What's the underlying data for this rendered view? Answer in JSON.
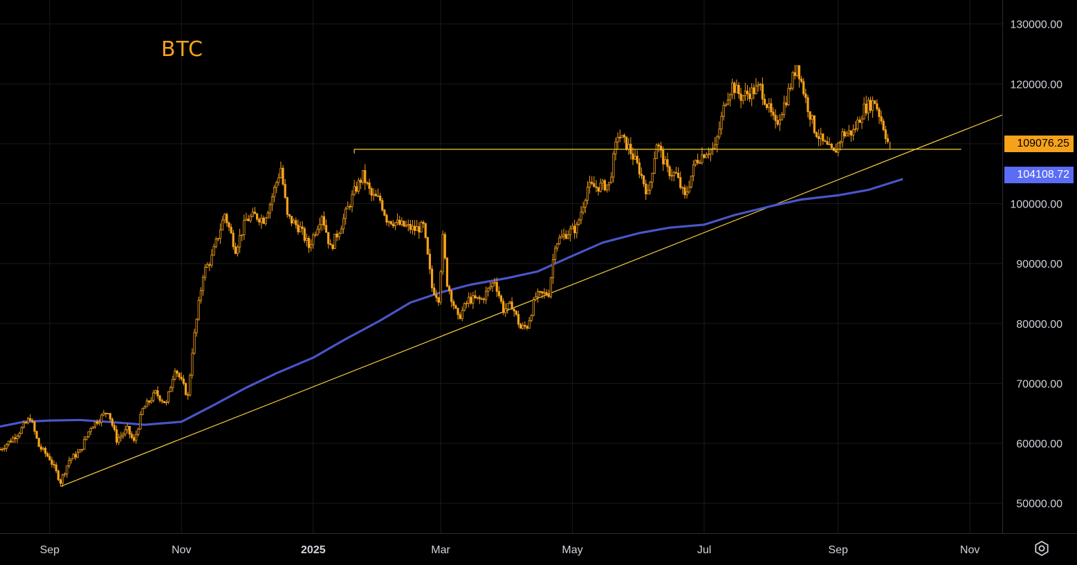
{
  "chart_data": {
    "type": "candlestick",
    "title": "BTC",
    "x_ticks": [
      "Sep",
      "Nov",
      "2025",
      "Mar",
      "May",
      "Jul",
      "Sep",
      "Nov"
    ],
    "y_ticks": [
      "130000.00",
      "120000.00",
      "110000.00",
      "100000.00",
      "90000.00",
      "80000.00",
      "70000.00",
      "60000.00",
      "50000.00"
    ],
    "ylim": [
      45000,
      134000
    ],
    "xlim": [
      "2024-08-09",
      "2025-11-16"
    ],
    "grid": true,
    "last_price": {
      "label": "109076.25",
      "value": 109076.25
    },
    "moving_average": {
      "label": "104108.72",
      "value": 104108.72,
      "points": [
        [
          "2024-08-09",
          62800
        ],
        [
          "2024-08-20",
          63600
        ],
        [
          "2024-09-01",
          63800
        ],
        [
          "2024-09-15",
          63900
        ],
        [
          "2024-10-01",
          63500
        ],
        [
          "2024-10-15",
          63100
        ],
        [
          "2024-11-01",
          63600
        ],
        [
          "2024-11-15",
          66200
        ],
        [
          "2024-12-01",
          69300
        ],
        [
          "2024-12-15",
          71700
        ],
        [
          "2025-01-01",
          74300
        ],
        [
          "2025-01-15",
          77200
        ],
        [
          "2025-02-01",
          80500
        ],
        [
          "2025-02-15",
          83500
        ],
        [
          "2025-03-01",
          85200
        ],
        [
          "2025-03-15",
          86500
        ],
        [
          "2025-04-01",
          87600
        ],
        [
          "2025-04-15",
          88700
        ],
        [
          "2025-05-01",
          91300
        ],
        [
          "2025-05-15",
          93500
        ],
        [
          "2025-06-01",
          95100
        ],
        [
          "2025-06-15",
          96000
        ],
        [
          "2025-07-01",
          96500
        ],
        [
          "2025-07-15",
          98100
        ],
        [
          "2025-08-01",
          99600
        ],
        [
          "2025-08-15",
          100700
        ],
        [
          "2025-09-01",
          101400
        ],
        [
          "2025-09-15",
          102300
        ],
        [
          "2025-10-01",
          104108.72
        ]
      ]
    },
    "trendline": [
      [
        "2024-09-06",
        52800
      ],
      [
        "2025-11-16",
        114800
      ]
    ],
    "horizontal_level": {
      "value": 109076.25,
      "from": "2025-01-20",
      "to": "2025-10-28"
    },
    "series": [
      {
        "name": "BTC",
        "close": [
          [
            "2024-08-09",
            59000
          ],
          [
            "2024-08-14",
            60500
          ],
          [
            "2024-08-18",
            62000
          ],
          [
            "2024-08-23",
            64300
          ],
          [
            "2024-08-27",
            59500
          ],
          [
            "2024-09-01",
            57500
          ],
          [
            "2024-09-06",
            53600
          ],
          [
            "2024-09-10",
            57200
          ],
          [
            "2024-09-15",
            58600
          ],
          [
            "2024-09-20",
            62800
          ],
          [
            "2024-09-24",
            64100
          ],
          [
            "2024-09-28",
            65500
          ],
          [
            "2024-10-02",
            60600
          ],
          [
            "2024-10-07",
            62300
          ],
          [
            "2024-10-10",
            60200
          ],
          [
            "2024-10-14",
            65600
          ],
          [
            "2024-10-20",
            68400
          ],
          [
            "2024-10-25",
            66600
          ],
          [
            "2024-10-29",
            72700
          ],
          [
            "2024-11-04",
            67800
          ],
          [
            "2024-11-06",
            75500
          ],
          [
            "2024-11-11",
            88300
          ],
          [
            "2024-11-15",
            91000
          ],
          [
            "2024-11-21",
            98300
          ],
          [
            "2024-11-26",
            92500
          ],
          [
            "2024-12-01",
            97300
          ],
          [
            "2024-12-05",
            98000
          ],
          [
            "2024-12-09",
            97400
          ],
          [
            "2024-12-12",
            100000
          ],
          [
            "2024-12-17",
            106000
          ],
          [
            "2024-12-20",
            97800
          ],
          [
            "2024-12-26",
            95800
          ],
          [
            "2024-12-30",
            92800
          ],
          [
            "2025-01-05",
            98300
          ],
          [
            "2025-01-09",
            92500
          ],
          [
            "2025-01-14",
            96500
          ],
          [
            "2025-01-20",
            102000
          ],
          [
            "2025-01-24",
            104700
          ],
          [
            "2025-01-28",
            101300
          ],
          [
            "2025-02-01",
            100600
          ],
          [
            "2025-02-04",
            97500
          ],
          [
            "2025-02-10",
            96500
          ],
          [
            "2025-02-17",
            95700
          ],
          [
            "2025-02-21",
            96200
          ],
          [
            "2025-02-25",
            86000
          ],
          [
            "2025-02-28",
            84300
          ],
          [
            "2025-03-02",
            94200
          ],
          [
            "2025-03-04",
            86800
          ],
          [
            "2025-03-09",
            80800
          ],
          [
            "2025-03-14",
            84000
          ],
          [
            "2025-03-20",
            84000
          ],
          [
            "2025-03-26",
            87200
          ],
          [
            "2025-03-30",
            82300
          ],
          [
            "2025-04-03",
            83100
          ],
          [
            "2025-04-07",
            79200
          ],
          [
            "2025-04-10",
            79600
          ],
          [
            "2025-04-14",
            84500
          ],
          [
            "2025-04-20",
            85100
          ],
          [
            "2025-04-23",
            93400
          ],
          [
            "2025-04-28",
            95000
          ],
          [
            "2025-05-03",
            96000
          ],
          [
            "2025-05-08",
            102800
          ],
          [
            "2025-05-12",
            102800
          ],
          [
            "2025-05-18",
            103200
          ],
          [
            "2025-05-22",
            111600
          ],
          [
            "2025-05-27",
            109400
          ],
          [
            "2025-06-01",
            105600
          ],
          [
            "2025-06-05",
            101500
          ],
          [
            "2025-06-09",
            110200
          ],
          [
            "2025-06-14",
            105500
          ],
          [
            "2025-06-18",
            104800
          ],
          [
            "2025-06-22",
            101000
          ],
          [
            "2025-06-27",
            107100
          ],
          [
            "2025-07-02",
            108800
          ],
          [
            "2025-07-06",
            109200
          ],
          [
            "2025-07-11",
            117500
          ],
          [
            "2025-07-14",
            119800
          ],
          [
            "2025-07-18",
            117900
          ],
          [
            "2025-07-23",
            118700
          ],
          [
            "2025-07-27",
            119400
          ],
          [
            "2025-07-31",
            115700
          ],
          [
            "2025-08-03",
            113000
          ],
          [
            "2025-08-08",
            117500
          ],
          [
            "2025-08-13",
            123300
          ],
          [
            "2025-08-17",
            117400
          ],
          [
            "2025-08-21",
            112500
          ],
          [
            "2025-08-25",
            110100
          ],
          [
            "2025-08-30",
            108300
          ],
          [
            "2025-09-03",
            111600
          ],
          [
            "2025-09-08",
            112000
          ],
          [
            "2025-09-13",
            115900
          ],
          [
            "2025-09-18",
            117100
          ],
          [
            "2025-09-22",
            112900
          ],
          [
            "2025-09-25",
            109076.25
          ]
        ]
      }
    ]
  }
}
